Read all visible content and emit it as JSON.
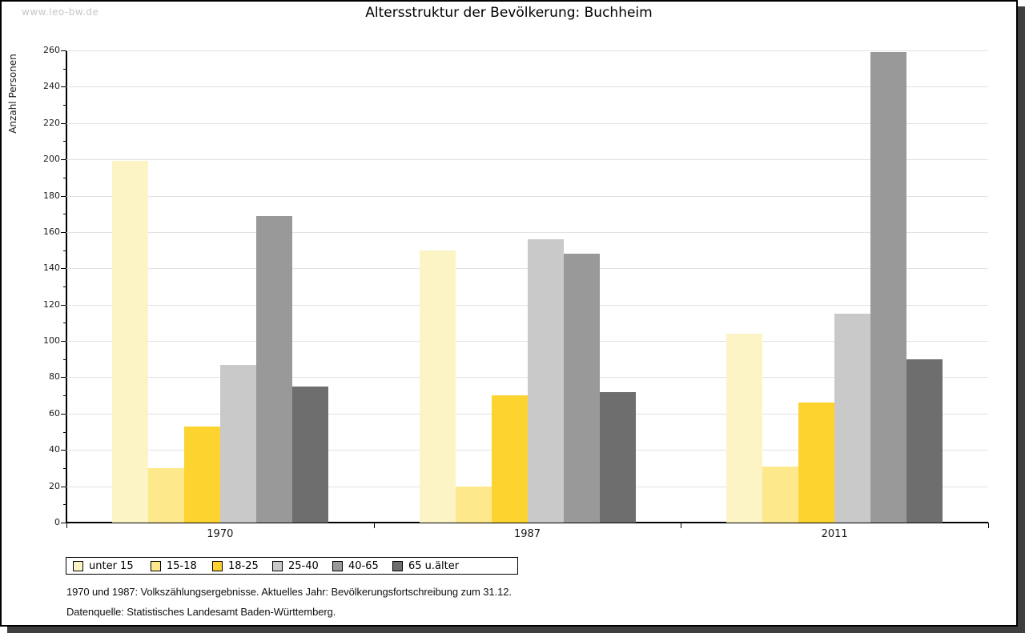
{
  "watermark": "www.leo-bw.de",
  "title": "Altersstruktur der Bevölkerung: Buchheim",
  "footer": {
    "line1": "1970 und 1987: Volkszählungsergebnisse. Aktuelles Jahr: Bevölkerungsfortschreibung zum 31.12.",
    "line2": "Datenquelle: Statistisches Landesamt Baden-Württemberg."
  },
  "chart_data": {
    "type": "bar",
    "title": "Altersstruktur der Bevölkerung: Buchheim",
    "xlabel": "",
    "ylabel": "Anzahl Personen",
    "categories": [
      "1970",
      "1987",
      "2011"
    ],
    "series": [
      {
        "name": "unter 15",
        "color": "#FCF4C5",
        "values": [
          199,
          150,
          104
        ]
      },
      {
        "name": "15-18",
        "color": "#FDE98C",
        "values": [
          30,
          20,
          31
        ]
      },
      {
        "name": "18-25",
        "color": "#FDD330",
        "values": [
          53,
          70,
          66
        ]
      },
      {
        "name": "25-40",
        "color": "#C9C9C9",
        "values": [
          87,
          156,
          115
        ]
      },
      {
        "name": "40-65",
        "color": "#999999",
        "values": [
          169,
          148,
          259
        ]
      },
      {
        "name": "65 u.älter",
        "color": "#6E6E6E",
        "values": [
          75,
          72,
          90
        ]
      }
    ],
    "ylim": [
      0,
      260
    ],
    "ytick_step": 20,
    "ytick_minor_step": 10,
    "grid": "horizontal",
    "legend_position": "bottom",
    "colors": {
      "gridline": "#E2E2E2",
      "axis": "#000000",
      "frame_shadow": "#3F3F3F",
      "watermark": "#C6C6C6"
    }
  }
}
